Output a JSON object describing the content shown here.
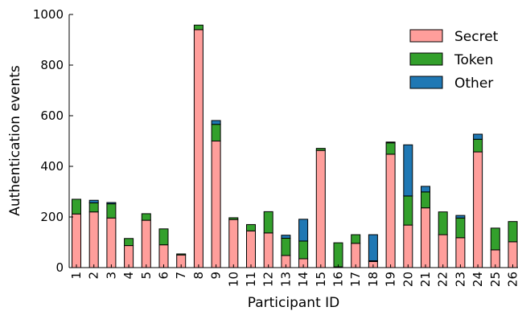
{
  "chart_data": {
    "type": "bar",
    "stacked": true,
    "xlabel": "Participant ID",
    "ylabel": "Authentication events",
    "ylim": [
      0,
      1000
    ],
    "yticks": [
      0,
      200,
      400,
      600,
      800,
      1000
    ],
    "legend_position": "top-right",
    "grid": false,
    "categories": [
      "1",
      "2",
      "3",
      "4",
      "5",
      "6",
      "7",
      "8",
      "9",
      "10",
      "11",
      "12",
      "13",
      "14",
      "15",
      "16",
      "17",
      "18",
      "19",
      "20",
      "21",
      "22",
      "23",
      "24",
      "25",
      "26"
    ],
    "series": [
      {
        "name": "Secret",
        "color": "#ff9e9b",
        "values": [
          212,
          220,
          196,
          87,
          187,
          90,
          50,
          940,
          500,
          190,
          145,
          137,
          48,
          35,
          463,
          3,
          96,
          24,
          448,
          168,
          236,
          130,
          118,
          457,
          70,
          102
        ]
      },
      {
        "name": "Token",
        "color": "#33a02c",
        "values": [
          58,
          36,
          56,
          28,
          26,
          63,
          4,
          18,
          66,
          7,
          25,
          84,
          68,
          70,
          8,
          95,
          34,
          3,
          45,
          115,
          63,
          90,
          78,
          50,
          86,
          80
        ]
      },
      {
        "name": "Other",
        "color": "#1f78b4",
        "values": [
          0,
          10,
          5,
          0,
          0,
          0,
          0,
          0,
          15,
          0,
          0,
          0,
          12,
          86,
          0,
          0,
          0,
          103,
          3,
          202,
          22,
          0,
          10,
          20,
          0,
          0
        ]
      }
    ]
  }
}
